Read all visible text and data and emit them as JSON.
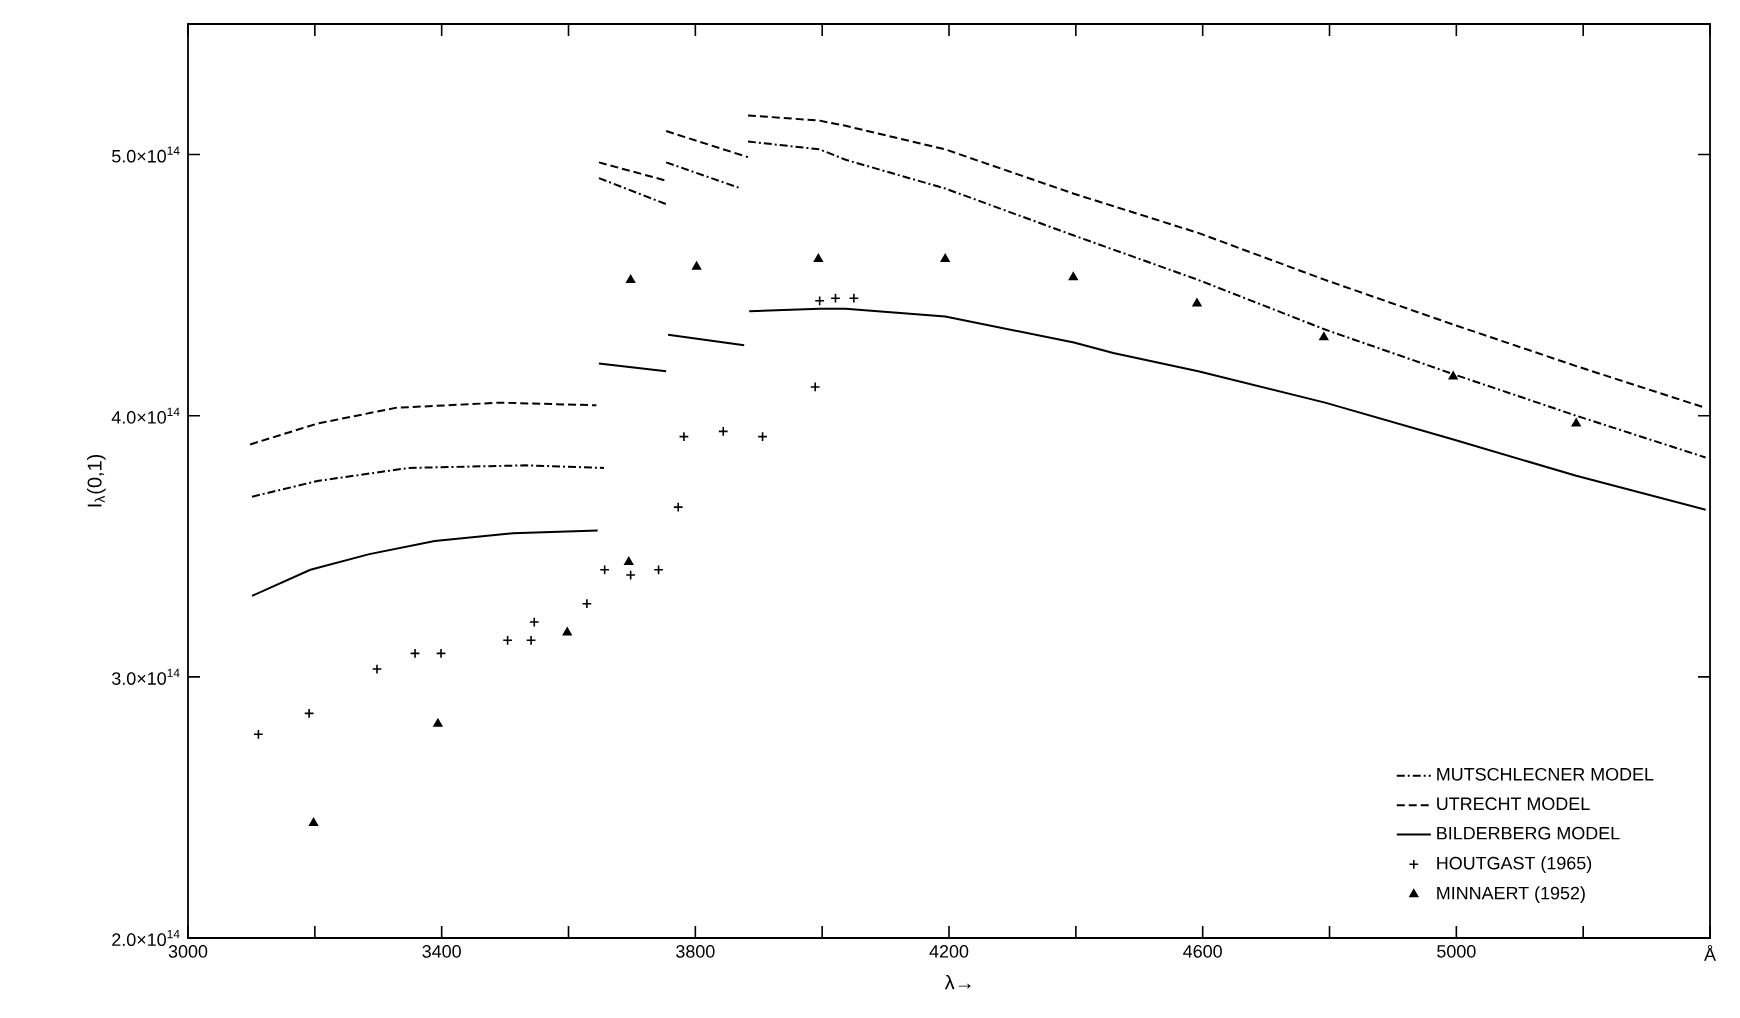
{
  "chart_data": {
    "type": "line",
    "xlabel": "λ→",
    "ylabel": "I$_{λ}$(0,1)",
    "xlim": [
      3000,
      5400
    ],
    "ylim": [
      200000000000000.0,
      550000000000000.0
    ],
    "xticks": [
      3000,
      {
        "value": 3200,
        "label": null
      },
      3400,
      {
        "value": 3600,
        "label": null
      },
      3800,
      {
        "value": 4000,
        "label": null
      },
      4200,
      {
        "value": 4400,
        "label": null
      },
      4600,
      {
        "value": 4800,
        "label": null
      },
      5000,
      {
        "value": 5200,
        "label": null
      },
      {
        "value": 5400,
        "label": "Å"
      }
    ],
    "yticks": [
      {
        "value": 200000000000000.0,
        "label": "2.0×10$^{14}$"
      },
      {
        "value": 300000000000000.0,
        "label": "3.0×10$^{14}$"
      },
      {
        "value": 400000000000000.0,
        "label": "4.0×10$^{14}$"
      },
      {
        "value": 500000000000000.0,
        "label": "5.0×10$^{14}$"
      }
    ],
    "grid": false,
    "legend": "bottom right",
    "series": [
      {
        "name": "MUTSCHLECNER MODEL",
        "line_style": "dashdot",
        "color": "#000000",
        "x": [
          3883,
          3996,
          4037,
          4194,
          4397,
          4593,
          4793,
          4994,
          5189,
          5393
        ],
        "values": [
          505000000000000.0,
          502000000000000.0,
          498000000000000.0,
          487000000000000.0,
          469000000000000.0,
          452000000000000.0,
          433000000000000.0,
          416000000000000.0,
          400000000000000.0,
          384000000000000.0
        ]
      },
      {
        "name": "UTRECHT MODEL",
        "line_style": "dashed",
        "color": "#000000",
        "x": [
          3883,
          3996,
          4037,
          4194,
          4397,
          4593,
          4793,
          4994,
          5189,
          5393
        ],
        "values": [
          515000000000000.0,
          513000000000000.0,
          511000000000000.0,
          502000000000000.0,
          485000000000000.0,
          470000000000000.0,
          452000000000000.0,
          435000000000000.0,
          419000000000000.0,
          403000000000000.0
        ]
      },
      {
        "name": "BILDERBERG MODEL",
        "line_style": "solid",
        "color": "#000000",
        "x": [
          3885,
          3996,
          4037,
          4194,
          4397,
          4459,
          4593,
          4793,
          4994,
          5189,
          5393
        ],
        "values": [
          440000000000000.0,
          441000000000000.0,
          441000000000000.0,
          438000000000000.0,
          428000000000000.0,
          424000000000000.0,
          417000000000000.0,
          405000000000000.0,
          391000000000000.0,
          377000000000000.0,
          364000000000000.0
        ]
      },
      {
        "name": "HOUTGAST (1965)",
        "type": "scatter",
        "marker": "cross",
        "color": "#000000",
        "x": [
          3111,
          3191,
          3298,
          3358,
          3399,
          3504,
          3541,
          3546,
          3629,
          3657,
          3698,
          3742,
          3773,
          3782,
          3844,
          3906,
          3989,
          3996,
          4021,
          4050
        ],
        "values": [
          278000000000000.0,
          286000000000000.0,
          303000000000000.0,
          309000000000000.0,
          309000000000000.0,
          314000000000000.0,
          314000000000000.0,
          321000000000000.0,
          328000000000000.0,
          341000000000000.0,
          339000000000000.0,
          341000000000000.0,
          365000000000000.0,
          392000000000000.0,
          394000000000000.0,
          392000000000000.0,
          411000000000000.0,
          444000000000000.0,
          445000000000000.0,
          445000000000000.0
        ]
      },
      {
        "name": "MINNAERT (1952)",
        "type": "scatter",
        "marker": "triangle",
        "color": "#000000",
        "x": [
          3198,
          3394,
          3598,
          3695,
          3698,
          3802,
          3994,
          4194,
          4396,
          4591,
          4791,
          4995,
          5189
        ],
        "values": [
          244000000000000.0,
          282000000000000.0,
          317000000000000.0,
          344000000000000.0,
          452000000000000.0,
          457000000000000.0,
          460000000000000.0,
          460000000000000.0,
          453000000000000.0,
          443000000000000.0,
          430000000000000.0,
          415000000000000.0,
          397000000000000.0
        ]
      },
      {
        "line_style": "dashdot",
        "color": "#000000",
        "x": [
          3101,
          3204,
          3348,
          3533,
          3656
        ],
        "values": [
          369000000000000.0,
          375000000000000.0,
          380000000000000.0,
          381000000000000.0,
          380000000000000.0
        ]
      },
      {
        "line_style": "dashdot",
        "color": "#000000",
        "x": [
          3648,
          3754
        ],
        "values": [
          491000000000000.0,
          481000000000000.0
        ]
      },
      {
        "line_style": "dashdot",
        "color": "#000000",
        "x": [
          3754,
          3872
        ],
        "values": [
          497000000000000.0,
          487000000000000.0
        ]
      },
      {
        "line_style": "dashed",
        "color": "#000000",
        "x": [
          3098,
          3204,
          3327,
          3492,
          3644
        ],
        "values": [
          389000000000000.0,
          397000000000000.0,
          403000000000000.0,
          405000000000000.0,
          404000000000000.0
        ]
      },
      {
        "line_style": "dashed",
        "color": "#000000",
        "x": [
          3648,
          3754
        ],
        "values": [
          497000000000000.0,
          490000000000000.0
        ]
      },
      {
        "line_style": "dashed",
        "color": "#000000",
        "x": [
          3754,
          3883
        ],
        "values": [
          509000000000000.0,
          499000000000000.0
        ]
      },
      {
        "line_style": "solid",
        "color": "#000000",
        "x": [
          3101,
          3193,
          3286,
          3389,
          3512,
          3646
        ],
        "values": [
          331000000000000.0,
          341000000000000.0,
          347000000000000.0,
          352000000000000.0,
          355000000000000.0,
          356000000000000.0
        ]
      },
      {
        "line_style": "solid",
        "color": "#000000",
        "x": [
          3648,
          3754
        ],
        "values": [
          420000000000000.0,
          417000000000000.0
        ]
      },
      {
        "line_style": "solid",
        "color": "#000000",
        "x": [
          3757,
          3877
        ],
        "values": [
          431000000000000.0,
          427000000000000.0
        ]
      }
    ]
  }
}
